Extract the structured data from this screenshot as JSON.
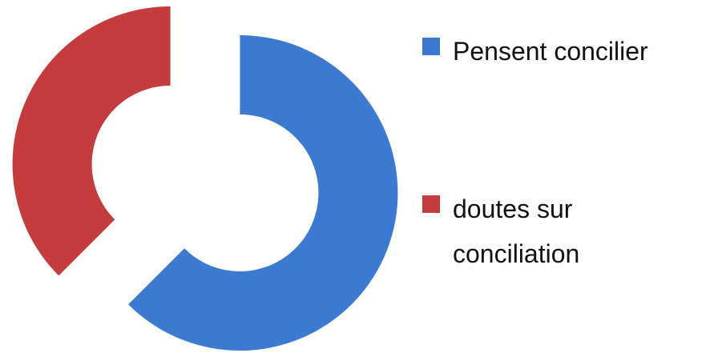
{
  "chart_data": {
    "type": "doughnut",
    "categories": [
      "Pensent concilier",
      "doutes sur conciliation"
    ],
    "values": [
      62.5,
      37.5
    ],
    "colors": [
      "#3b7ad0",
      "#c43c3c"
    ],
    "legend": "right"
  }
}
